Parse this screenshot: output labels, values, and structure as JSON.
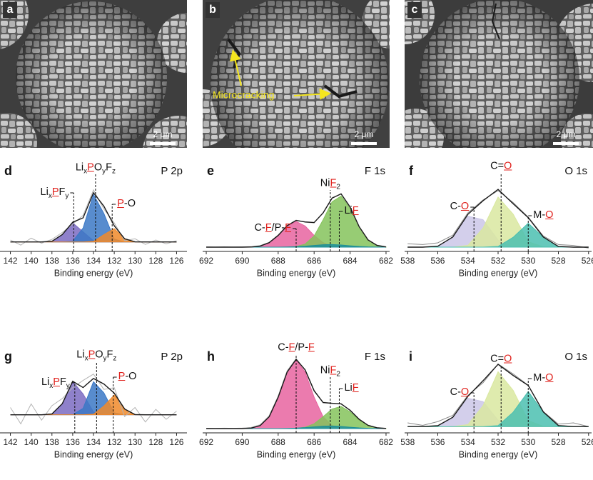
{
  "images": [
    {
      "label": "a",
      "scale_bar": "2 μm"
    },
    {
      "label": "b",
      "scale_bar": "2 μm",
      "annotation": "Microcracking"
    },
    {
      "label": "c",
      "scale_bar": "2 μm"
    }
  ],
  "chart_data": [
    {
      "type": "area",
      "panel": "d",
      "title": "P 2p",
      "x_label": "Binding energy (eV)",
      "x": [
        142,
        141,
        140,
        139,
        138,
        137,
        136,
        135,
        134,
        133,
        132,
        131,
        130,
        129,
        128,
        127,
        126
      ],
      "xlim": [
        143,
        125
      ],
      "xticks": [
        142,
        140,
        138,
        136,
        134,
        132,
        130,
        128,
        126
      ],
      "ylim": [
        -15,
        100
      ],
      "series": [
        {
          "label": [
            {
              "text": "Li"
            },
            {
              "text": "x",
              "sub": true
            },
            {
              "text": "P",
              "highlight": true
            },
            {
              "text": "F"
            },
            {
              "text": "y",
              "sub": true
            }
          ],
          "center": 135.9,
          "color": "#7b6bc2",
          "values": [
            0,
            0,
            0,
            0,
            1,
            11.7,
            30,
            16,
            1.8,
            0,
            0,
            0,
            0,
            0,
            0,
            0,
            0
          ]
        },
        {
          "label": [
            {
              "text": "Li"
            },
            {
              "text": "x",
              "sub": true
            },
            {
              "text": "P",
              "highlight": true
            },
            {
              "text": "O"
            },
            {
              "text": "y",
              "sub": true
            },
            {
              "text": "F"
            },
            {
              "text": "z",
              "sub": true
            }
          ],
          "center": 133.8,
          "color": "#3b78c6",
          "values": [
            0,
            0,
            0,
            0,
            0,
            0,
            1.1,
            22,
            75,
            45,
            4.5,
            0,
            0,
            0,
            0,
            0,
            0
          ]
        },
        {
          "label": [
            {
              "text": "P",
              "highlight": true
            },
            {
              "text": "-O"
            }
          ],
          "center": 132.2,
          "color": "#f0892a",
          "values": [
            0,
            0,
            0,
            0,
            0,
            0,
            0,
            0,
            0.8,
            11.4,
            21,
            5,
            0.2,
            0,
            0,
            0,
            0
          ]
        },
        {
          "color": "#b4b4b4",
          "values": [
            3,
            -5,
            6,
            -2,
            4,
            15,
            28,
            42,
            82,
            52,
            30,
            2,
            5,
            -4,
            3,
            -3,
            2
          ]
        },
        {
          "color": "#1a1a1a",
          "values": [
            0,
            0,
            0,
            0,
            1,
            11.7,
            31.1,
            38,
            77.6,
            56.4,
            25.5,
            5,
            0.2,
            0,
            0,
            0,
            0
          ]
        }
      ]
    },
    {
      "type": "area",
      "panel": "e",
      "title": "F 1s",
      "x_label": "Binding energy (eV)",
      "x": [
        692,
        691.5,
        691,
        690.5,
        690,
        689.5,
        689,
        688.5,
        688,
        687.5,
        687,
        686.5,
        686,
        685.5,
        685,
        684.5,
        684,
        683.5,
        683,
        682.5,
        682
      ],
      "xlim": [
        692.2,
        681.8
      ],
      "xticks": [
        692,
        690,
        688,
        686,
        684,
        682
      ],
      "ylim": [
        -5,
        80
      ],
      "series": [
        {
          "label": [
            {
              "text": "C-"
            },
            {
              "text": "F",
              "highlight": true
            },
            {
              "text": "/P-"
            },
            {
              "text": "F",
              "highlight": true
            }
          ],
          "center": 687.0,
          "color": "#e864a0",
          "values": [
            0,
            0,
            0,
            0,
            0,
            0.2,
            1.3,
            5.2,
            13.7,
            24.7,
            30,
            24.7,
            13.7,
            5.2,
            1.3,
            0.2,
            0,
            0,
            0,
            0,
            0
          ]
        },
        {
          "label": [
            {
              "text": "Li"
            },
            {
              "text": "F",
              "highlight": true
            }
          ],
          "center": 684.6,
          "color": "#85c35c",
          "values": [
            0,
            0,
            0,
            0,
            0,
            0,
            0,
            0,
            0,
            0.1,
            0.7,
            3.6,
            13,
            31.9,
            52.9,
            59.5,
            45.3,
            23.3,
            8.1,
            1.9,
            0.3
          ]
        },
        {
          "label": [
            {
              "text": "Ni"
            },
            {
              "text": "F",
              "highlight": true
            },
            {
              "text": "2",
              "sub": true
            }
          ],
          "center": 685.1,
          "color": "#1c8f9a",
          "values": [
            0,
            0,
            0,
            0,
            0,
            0,
            0,
            0,
            0,
            0.2,
            0.5,
            1.1,
            2,
            2.8,
            3,
            2.5,
            1.6,
            0.8,
            0.3,
            0.1,
            0
          ]
        },
        {
          "color": "#b4b4b4",
          "values": [
            0.3,
            0,
            0.4,
            0.1,
            0.3,
            0.6,
            1.8,
            5.8,
            14.2,
            25.6,
            31.5,
            29,
            28.2,
            40.5,
            57.8,
            61.8,
            46.2,
            23.6,
            8.9,
            2.4,
            0.5
          ]
        },
        {
          "color": "#1a1a1a",
          "values": [
            0,
            0,
            0,
            0,
            0,
            0.2,
            1.3,
            5.2,
            13.7,
            25,
            31.2,
            29.4,
            28.7,
            39.9,
            57.2,
            62.2,
            46.9,
            24.1,
            8.4,
            2,
            0.3
          ]
        }
      ]
    },
    {
      "type": "area",
      "panel": "f",
      "title": "O 1s",
      "x_label": "Binding energy (eV)",
      "x": [
        538,
        537,
        536,
        535,
        534,
        533,
        532,
        531,
        530,
        529,
        528,
        527,
        526
      ],
      "xlim": [
        538.2,
        525.8
      ],
      "xticks": [
        538,
        536,
        534,
        532,
        530,
        528,
        526
      ],
      "ylim": [
        -5,
        80
      ],
      "series": [
        {
          "label": [
            {
              "text": "C-"
            },
            {
              "text": "O",
              "highlight": true
            }
          ],
          "center": 533.6,
          "color": "#cbc7e8",
          "values": [
            0,
            0,
            1.1,
            11.9,
            36.2,
            32,
            8.2,
            0.6,
            0,
            0,
            0,
            0,
            0
          ]
        },
        {
          "label": [
            {
              "text": "C="
            },
            {
              "text": "O",
              "highlight": true
            }
          ],
          "center": 531.8,
          "color": "#d9e8a0",
          "values": [
            0,
            0,
            0,
            0,
            2.1,
            22.1,
            58.4,
            38.5,
            6.4,
            0.3,
            0,
            0,
            0
          ]
        },
        {
          "label": [
            {
              "text": "M-"
            },
            {
              "text": "O",
              "highlight": true
            }
          ],
          "center": 530.0,
          "color": "#4bbfb0",
          "values": [
            0,
            0,
            0,
            0,
            0,
            0,
            0.8,
            11.5,
            28,
            11.5,
            0.8,
            0,
            0
          ]
        },
        {
          "color": "#8a8a8a",
          "values": [
            4,
            3,
            5,
            14,
            40,
            55,
            66,
            52,
            35,
            13,
            3,
            2,
            -1
          ]
        },
        {
          "color": "#1a1a1a",
          "values": [
            0,
            0,
            1.1,
            11.9,
            38.3,
            54.1,
            67.4,
            50.6,
            34.4,
            11.8,
            0.8,
            0,
            0
          ]
        }
      ]
    },
    {
      "type": "area",
      "panel": "g",
      "title": "P 2p",
      "x_label": "Binding energy (eV)",
      "x": [
        142,
        141,
        140,
        139,
        138,
        137,
        136,
        135,
        134,
        133,
        132,
        131,
        130,
        129,
        128,
        127,
        126
      ],
      "xlim": [
        143,
        125
      ],
      "xticks": [
        142,
        140,
        138,
        136,
        134,
        132,
        130,
        128,
        126
      ],
      "ylim": [
        -20,
        70
      ],
      "series": [
        {
          "label": [
            {
              "text": "Li"
            },
            {
              "text": "x",
              "sub": true
            },
            {
              "text": "P",
              "highlight": true
            },
            {
              "text": "F"
            },
            {
              "text": "y",
              "sub": true
            }
          ],
          "center": 135.8,
          "color": "#7b6bc2",
          "values": [
            0,
            0,
            0,
            0,
            0.9,
            12.3,
            36.8,
            23,
            3,
            0.1,
            0,
            0,
            0,
            0,
            0,
            0,
            0
          ]
        },
        {
          "label": [
            {
              "text": "Li"
            },
            {
              "text": "x",
              "sub": true
            },
            {
              "text": "P",
              "highlight": true
            },
            {
              "text": "O"
            },
            {
              "text": "y",
              "sub": true
            },
            {
              "text": "F"
            },
            {
              "text": "z",
              "sub": true
            }
          ],
          "center": 133.7,
          "color": "#3b78c6",
          "values": [
            0,
            0,
            0,
            0,
            0,
            0,
            0.2,
            7.1,
            36.5,
            24.3,
            2.1,
            0,
            0,
            0,
            0,
            0,
            0
          ]
        },
        {
          "label": [
            {
              "text": "P",
              "highlight": true
            },
            {
              "text": "-O"
            }
          ],
          "center": 132.1,
          "color": "#f0892a",
          "values": [
            0,
            0,
            0,
            0,
            0,
            0,
            0,
            0,
            0.6,
            9.6,
            21.8,
            6.4,
            0.2,
            0,
            0,
            0,
            0
          ]
        },
        {
          "color": "#b4b4b4",
          "values": [
            8,
            -10,
            12,
            -6,
            10,
            18,
            30,
            38,
            45,
            28,
            30,
            -2,
            8,
            -8,
            6,
            -5,
            4
          ]
        },
        {
          "color": "#1a1a1a",
          "values": [
            0,
            0,
            0,
            0,
            0.9,
            12.3,
            37,
            30.1,
            40.1,
            34,
            23.9,
            6.4,
            0.2,
            0,
            0,
            0,
            0
          ]
        }
      ]
    },
    {
      "type": "area",
      "panel": "h",
      "title": "F 1s",
      "x_label": "Binding energy (eV)",
      "x": [
        692,
        691.5,
        691,
        690.5,
        690,
        689.5,
        689,
        688.5,
        688,
        687.5,
        687,
        686.5,
        686,
        685.5,
        685,
        684.5,
        684,
        683.5,
        683,
        682.5,
        682
      ],
      "xlim": [
        692.2,
        681.8
      ],
      "xticks": [
        692,
        690,
        688,
        686,
        684,
        682
      ],
      "ylim": [
        -5,
        90
      ],
      "series": [
        {
          "label": [
            {
              "text": "C-"
            },
            {
              "text": "F",
              "highlight": true
            },
            {
              "text": "/P-"
            },
            {
              "text": "F",
              "highlight": true
            }
          ],
          "center": 687.0,
          "color": "#e864a0",
          "values": [
            0,
            0,
            0,
            0,
            0,
            0.6,
            3.5,
            13.8,
            36.6,
            65.8,
            80,
            65.8,
            36.6,
            13.8,
            3.5,
            0.6,
            0.1,
            0,
            0,
            0,
            0
          ]
        },
        {
          "label": [
            {
              "text": "Li"
            },
            {
              "text": "F",
              "highlight": true
            }
          ],
          "center": 684.6,
          "color": "#85c35c",
          "values": [
            0,
            0,
            0,
            0,
            0,
            0,
            0,
            0,
            0,
            0,
            0.3,
            1.6,
            5.6,
            13.8,
            22.9,
            25.8,
            19.6,
            10.1,
            3.5,
            0.8,
            0.1
          ]
        },
        {
          "label": [
            {
              "text": "Ni"
            },
            {
              "text": "F",
              "highlight": true
            },
            {
              "text": "2",
              "sub": true
            }
          ],
          "center": 685.1,
          "color": "#1c8f9a",
          "values": [
            0,
            0,
            0,
            0,
            0,
            0,
            0,
            0,
            0,
            0.2,
            0.5,
            1.1,
            2,
            2.8,
            3,
            2.5,
            1.6,
            0.8,
            0.3,
            0.1,
            0
          ]
        },
        {
          "color": "#b4b4b4",
          "values": [
            0.4,
            0.2,
            0.5,
            0.3,
            0.6,
            1.4,
            4.5,
            15,
            38,
            67.5,
            81.5,
            68,
            43.5,
            30.8,
            29.8,
            28.4,
            21.8,
            11.2,
            4,
            1.2,
            0.4
          ]
        },
        {
          "color": "#1a1a1a",
          "values": [
            0,
            0,
            0,
            0,
            0,
            0.6,
            3.5,
            13.8,
            36.6,
            66,
            80.8,
            68.5,
            44.2,
            30.4,
            29.4,
            28.9,
            21.3,
            10.9,
            3.8,
            0.9,
            0.1
          ]
        }
      ]
    },
    {
      "type": "area",
      "panel": "i",
      "title": "O 1s",
      "x_label": "Binding energy (eV)",
      "x": [
        538,
        537,
        536,
        535,
        534,
        533,
        532,
        531,
        530,
        529,
        528,
        527,
        526
      ],
      "xlim": [
        538.2,
        525.8
      ],
      "xticks": [
        538,
        536,
        534,
        532,
        530,
        528,
        526
      ],
      "ylim": [
        -5,
        60
      ],
      "series": [
        {
          "label": [
            {
              "text": "C-"
            },
            {
              "text": "O",
              "highlight": true
            }
          ],
          "center": 533.6,
          "color": "#cbc7e8",
          "values": [
            0,
            0,
            0.7,
            7.5,
            22.6,
            20,
            5.1,
            0.4,
            0,
            0,
            0,
            0,
            0
          ]
        },
        {
          "label": [
            {
              "text": "C="
            },
            {
              "text": "O",
              "highlight": true
            }
          ],
          "center": 531.8,
          "color": "#d9e8a0",
          "values": [
            0,
            0,
            0,
            0,
            1.6,
            16.6,
            43.8,
            28.9,
            4.8,
            0.2,
            0,
            0,
            0
          ]
        },
        {
          "label": [
            {
              "text": "M-"
            },
            {
              "text": "O",
              "highlight": true
            }
          ],
          "center": 530.0,
          "color": "#4bbfb0",
          "values": [
            0,
            0,
            0,
            0,
            0,
            0,
            0.8,
            11.5,
            28,
            11.5,
            0.8,
            0,
            0
          ]
        },
        {
          "color": "#8a8a8a",
          "values": [
            3,
            1,
            4,
            9,
            25,
            35,
            50,
            42,
            33,
            12,
            2,
            3,
            0
          ]
        },
        {
          "color": "#1a1a1a",
          "values": [
            0,
            0,
            0.7,
            7.5,
            24.2,
            36.6,
            49.7,
            40.8,
            32.8,
            11.7,
            0.8,
            0,
            0
          ]
        }
      ]
    }
  ]
}
